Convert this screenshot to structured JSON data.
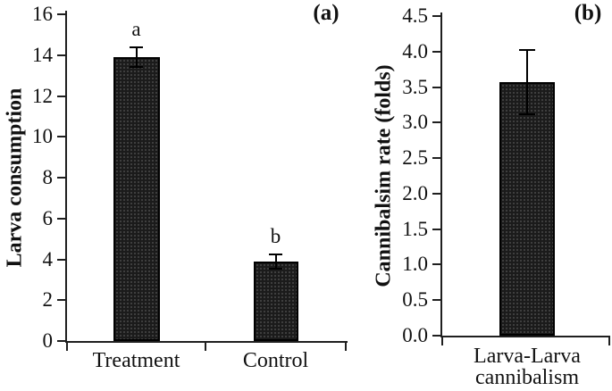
{
  "figure_title": "",
  "colors": {
    "background": "#ffffff",
    "bar_fill": "#1b1b1b",
    "bar_border": "#000000",
    "axis": "#1f1f1f",
    "text": "#111111"
  },
  "chart_data": [
    {
      "type": "bar",
      "panel_label": "(a)",
      "title": "",
      "xlabel": "",
      "ylabel": "Larva consumption",
      "ylim": [
        0,
        16
      ],
      "ytick_step": 2,
      "ytick_decimals": 0,
      "grid": false,
      "legend": "none",
      "categories": [
        "Treatment",
        "Control"
      ],
      "values": [
        13.9,
        3.9
      ],
      "errors": [
        0.5,
        0.35
      ],
      "sig_letters": [
        "a",
        "b"
      ]
    },
    {
      "type": "bar",
      "panel_label": "(b)",
      "title": "",
      "xlabel": "",
      "ylabel": "Cannibalsim rate (folds)",
      "ylim": [
        0,
        4.5
      ],
      "ytick_step": 0.5,
      "ytick_decimals": 1,
      "grid": false,
      "legend": "none",
      "categories": [
        "Larva-Larva\ncannibalism"
      ],
      "values": [
        3.57
      ],
      "errors": [
        0.45
      ],
      "sig_letters": [
        ""
      ]
    }
  ]
}
